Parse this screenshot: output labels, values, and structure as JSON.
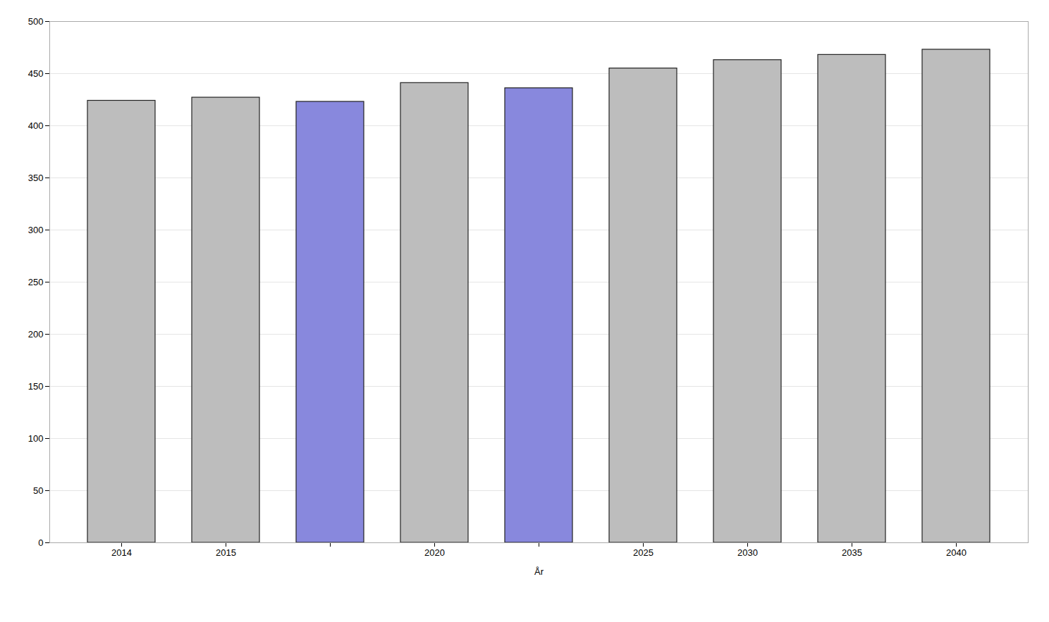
{
  "chart_data": {
    "type": "bar",
    "xlabel": "År",
    "categories": [
      "2014",
      "2015",
      null,
      "2020",
      null,
      "2025",
      "2030",
      "2035",
      "2040"
    ],
    "values": [
      424,
      427,
      423,
      441,
      436,
      455,
      463,
      468,
      473
    ],
    "colors": [
      "#bdbdbd",
      "#bdbdbd",
      "#8888dd",
      "#bdbdbd",
      "#8888dd",
      "#bdbdbd",
      "#bdbdbd",
      "#bdbdbd",
      "#bdbdbd"
    ],
    "ylim": [
      0,
      500
    ],
    "yticks": [
      0,
      50,
      100,
      150,
      200,
      250,
      300,
      350,
      400,
      450,
      500
    ],
    "grid": true
  }
}
